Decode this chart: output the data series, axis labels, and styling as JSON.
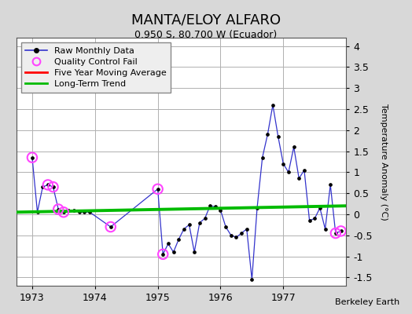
{
  "title": "MANTA/ELOY ALFARO",
  "subtitle": "0.950 S, 80.700 W (Ecuador)",
  "ylabel": "Temperature Anomaly (°C)",
  "credit": "Berkeley Earth",
  "ylim": [
    -1.7,
    4.2
  ],
  "yticks": [
    -1.5,
    -1.0,
    -0.5,
    0.0,
    0.5,
    1.0,
    1.5,
    2.0,
    2.5,
    3.0,
    3.5,
    4.0
  ],
  "xlim": [
    1972.75,
    1978.0
  ],
  "xticks": [
    1973,
    1974,
    1975,
    1976,
    1977
  ],
  "bg_color": "#d8d8d8",
  "plot_bg_color": "#ffffff",
  "grid_color": "#b0b0b0",
  "raw_line_color": "#3333cc",
  "raw_marker_color": "#000000",
  "qc_fail_color": "#ff44ff",
  "five_yr_color": "#ff0000",
  "trend_color": "#00bb00",
  "raw_data_x": [
    1973.0,
    1973.083,
    1973.167,
    1973.25,
    1973.333,
    1973.417,
    1973.5,
    1973.583,
    1973.667,
    1973.75,
    1973.833,
    1973.917,
    1974.25,
    1975.0,
    1975.083,
    1975.167,
    1975.25,
    1975.333,
    1975.417,
    1975.5,
    1975.583,
    1975.667,
    1975.75,
    1975.833,
    1975.917,
    1976.0,
    1976.083,
    1976.167,
    1976.25,
    1976.333,
    1976.417,
    1976.5,
    1976.583,
    1976.667,
    1976.75,
    1976.833,
    1976.917,
    1977.0,
    1977.083,
    1977.167,
    1977.25,
    1977.333,
    1977.417,
    1977.5,
    1977.583,
    1977.667,
    1977.75,
    1977.833,
    1977.917
  ],
  "raw_data_y": [
    1.35,
    0.05,
    0.65,
    0.7,
    0.65,
    0.12,
    0.05,
    0.1,
    0.1,
    0.05,
    0.05,
    0.05,
    -0.3,
    0.6,
    -0.95,
    -0.7,
    -0.9,
    -0.6,
    -0.35,
    -0.25,
    -0.9,
    -0.2,
    -0.1,
    0.2,
    0.18,
    0.1,
    -0.3,
    -0.5,
    -0.55,
    -0.45,
    -0.35,
    -1.55,
    0.15,
    1.35,
    1.9,
    2.6,
    1.85,
    1.2,
    1.0,
    1.6,
    0.85,
    1.05,
    -0.15,
    -0.1,
    0.15,
    -0.35,
    0.7,
    -0.45,
    -0.4
  ],
  "qc_fail_x": [
    1973.0,
    1973.25,
    1973.333,
    1973.417,
    1973.5,
    1974.25,
    1975.0,
    1975.083,
    1977.833,
    1977.917
  ],
  "qc_fail_y": [
    1.35,
    0.7,
    0.65,
    0.12,
    0.05,
    -0.3,
    0.6,
    -0.95,
    -0.45,
    -0.4
  ],
  "trend_x": [
    1972.75,
    1978.0
  ],
  "trend_y": [
    0.05,
    0.2
  ],
  "title_fontsize": 13,
  "subtitle_fontsize": 9,
  "tick_fontsize": 9,
  "ylabel_fontsize": 8,
  "legend_fontsize": 8,
  "credit_fontsize": 8
}
